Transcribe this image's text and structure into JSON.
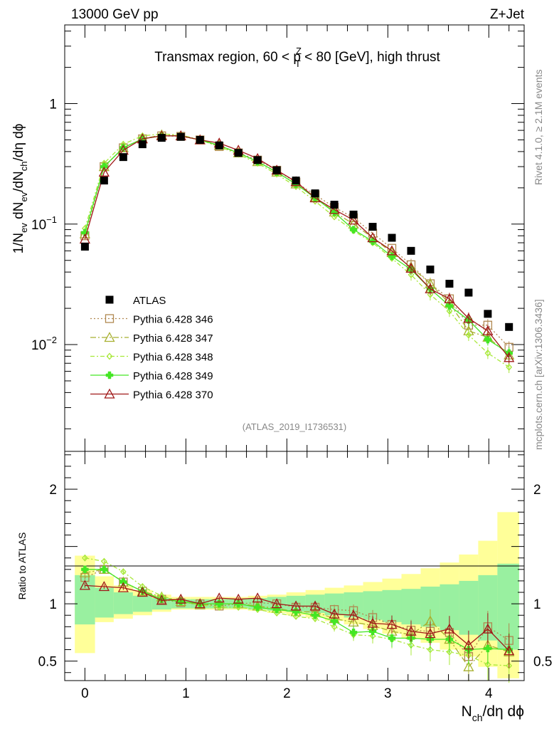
{
  "header": {
    "energy": "13000 GeV pp",
    "process": "Z+Jet",
    "rivet": "Rivet 4.1.0, ≥ 2.1M events",
    "mcplots": "mcplots.cern.ch [arXiv:1306.3436]",
    "analysis": "(ATLAS_2019_I1736531)"
  },
  "chart_data": {
    "type": "line",
    "title_parts": {
      "a": "Transmax region, 60 < p",
      "sup": "Z",
      "sub": "T",
      "b": " < 80 [GeV], high thrust"
    },
    "ylabel_parts": {
      "a": "1/N",
      "s1": "ev",
      "b": " dN",
      "s2": "ev",
      "c": "/dN",
      "s3": "ch",
      "d": "/dη dϕ"
    },
    "xlabel_parts": {
      "a": "N",
      "s1": "ch",
      "b": "/dη dϕ"
    },
    "ratio_ylabel": "Ratio to ATLAS",
    "xlim": [
      -0.2,
      4.35
    ],
    "ylim_main": [
      0.0013,
      4.5
    ],
    "ylim_ratio": [
      0.33,
      2.33
    ],
    "x_ticks": [
      "0",
      "1",
      "2",
      "3",
      "4"
    ],
    "y_ticks_main": [
      {
        "v": 1,
        "base": "1",
        "exp": ""
      },
      {
        "v": 0.1,
        "base": "10",
        "exp": "−1"
      },
      {
        "v": 0.01,
        "base": "10",
        "exp": "−2"
      }
    ],
    "y_ticks_ratio": [
      {
        "v": 0.5,
        "label": "0.5"
      },
      {
        "v": 1,
        "label": "1"
      },
      {
        "v": 2,
        "label": "2"
      }
    ],
    "x": [
      0.0,
      0.19,
      0.38,
      0.57,
      0.76,
      0.95,
      1.14,
      1.33,
      1.52,
      1.71,
      1.9,
      2.09,
      2.28,
      2.47,
      2.66,
      2.85,
      3.04,
      3.23,
      3.42,
      3.61,
      3.8,
      3.99,
      4.2
    ],
    "data": {
      "name": "ATLAS",
      "values": [
        0.065,
        0.23,
        0.36,
        0.46,
        0.52,
        0.53,
        0.5,
        0.45,
        0.39,
        0.34,
        0.28,
        0.23,
        0.18,
        0.145,
        0.12,
        0.095,
        0.077,
        0.06,
        0.042,
        0.032,
        0.027,
        0.018,
        0.014
      ]
    },
    "series": [
      {
        "name": "Pythia 6.428 346",
        "color": "#b08850",
        "marker": "square-open",
        "dash": "2,3",
        "values": [
          0.08,
          0.3,
          0.43,
          0.51,
          0.54,
          0.535,
          0.5,
          0.44,
          0.39,
          0.34,
          0.28,
          0.222,
          0.175,
          0.138,
          0.113,
          0.084,
          0.063,
          0.046,
          0.032,
          0.024,
          0.0145,
          0.0145,
          0.0095
        ],
        "ratio": [
          1.23,
          1.3,
          1.19,
          1.11,
          1.04,
          1.01,
          1.0,
          0.98,
          1.0,
          1.01,
          1.0,
          0.97,
          0.97,
          0.95,
          0.94,
          0.88,
          0.82,
          0.77,
          0.76,
          0.75,
          0.54,
          0.8,
          0.68
        ]
      },
      {
        "name": "Pythia 6.428 347",
        "color": "#a8b030",
        "marker": "triangle-open",
        "dash": "8,3,2,3",
        "values": [
          0.083,
          0.3,
          0.43,
          0.51,
          0.55,
          0.54,
          0.5,
          0.45,
          0.39,
          0.33,
          0.27,
          0.215,
          0.168,
          0.126,
          0.1,
          0.077,
          0.058,
          0.044,
          0.032,
          0.022,
          0.013,
          0.0115,
          0.0082
        ],
        "ratio": [
          1.27,
          1.3,
          1.19,
          1.11,
          1.06,
          1.02,
          0.99,
          1.0,
          1.0,
          0.98,
          0.96,
          0.93,
          0.93,
          0.87,
          0.84,
          0.81,
          0.76,
          0.73,
          0.85,
          0.69,
          0.45,
          0.64,
          0.58
        ]
      },
      {
        "name": "Pythia 6.428 348",
        "color": "#a8e838",
        "marker": "diamond-open",
        "dash": "6,3,2,3",
        "values": [
          0.092,
          0.32,
          0.46,
          0.54,
          0.56,
          0.55,
          0.5,
          0.44,
          0.38,
          0.32,
          0.26,
          0.205,
          0.155,
          0.115,
          0.088,
          0.07,
          0.052,
          0.038,
          0.026,
          0.019,
          0.012,
          0.0085,
          0.0065
        ],
        "ratio": [
          1.4,
          1.37,
          1.28,
          1.15,
          1.07,
          1.02,
          0.99,
          0.97,
          0.97,
          0.95,
          0.92,
          0.89,
          0.87,
          0.8,
          0.73,
          0.72,
          0.69,
          0.64,
          0.6,
          0.58,
          0.55,
          0.47,
          0.46
        ]
      },
      {
        "name": "Pythia 6.428 349",
        "color": "#44e624",
        "marker": "cross",
        "dash": "",
        "values": [
          0.085,
          0.3,
          0.43,
          0.51,
          0.54,
          0.54,
          0.5,
          0.45,
          0.39,
          0.33,
          0.27,
          0.215,
          0.165,
          0.125,
          0.09,
          0.072,
          0.054,
          0.042,
          0.029,
          0.021,
          0.016,
          0.011,
          0.0085
        ],
        "ratio": [
          1.3,
          1.3,
          1.19,
          1.11,
          1.04,
          1.02,
          1.0,
          1.0,
          1.0,
          0.97,
          0.95,
          0.93,
          0.9,
          0.85,
          0.75,
          0.76,
          0.7,
          0.7,
          0.69,
          0.69,
          0.6,
          0.61,
          0.6
        ]
      },
      {
        "name": "Pythia 6.428 370",
        "color": "#a01818",
        "marker": "triangle-open",
        "dash": "",
        "values": [
          0.075,
          0.27,
          0.41,
          0.51,
          0.54,
          0.54,
          0.5,
          0.47,
          0.41,
          0.35,
          0.28,
          0.225,
          0.165,
          0.132,
          0.108,
          0.077,
          0.06,
          0.043,
          0.029,
          0.024,
          0.0165,
          0.013,
          0.0078
        ],
        "ratio": [
          1.16,
          1.15,
          1.14,
          1.1,
          1.03,
          1.04,
          1.0,
          1.05,
          1.04,
          1.05,
          1.0,
          0.98,
          0.98,
          0.91,
          0.9,
          0.83,
          0.82,
          0.76,
          0.74,
          0.78,
          0.64,
          0.78,
          0.59
        ]
      }
    ],
    "bands": {
      "edges": [
        -0.1,
        0.1,
        0.285,
        0.475,
        0.665,
        0.855,
        1.045,
        1.235,
        1.425,
        1.615,
        1.805,
        1.995,
        2.185,
        2.375,
        2.565,
        2.755,
        2.945,
        3.135,
        3.325,
        3.515,
        3.705,
        3.895,
        4.085,
        4.3
      ],
      "stat_hi": [
        1.25,
        1.14,
        1.1,
        1.07,
        1.05,
        1.04,
        1.04,
        1.04,
        1.04,
        1.05,
        1.06,
        1.07,
        1.08,
        1.09,
        1.1,
        1.11,
        1.12,
        1.13,
        1.15,
        1.17,
        1.2,
        1.25,
        1.35
      ],
      "stat_lo": [
        0.82,
        0.88,
        0.91,
        0.93,
        0.95,
        0.96,
        0.96,
        0.96,
        0.96,
        0.95,
        0.94,
        0.93,
        0.92,
        0.9,
        0.88,
        0.86,
        0.84,
        0.82,
        0.8,
        0.77,
        0.73,
        0.68,
        0.6
      ],
      "tot_hi": [
        1.42,
        1.24,
        1.16,
        1.12,
        1.08,
        1.06,
        1.06,
        1.06,
        1.06,
        1.07,
        1.08,
        1.1,
        1.12,
        1.14,
        1.16,
        1.19,
        1.22,
        1.26,
        1.31,
        1.36,
        1.43,
        1.55,
        1.8
      ],
      "tot_lo": [
        0.57,
        0.84,
        0.87,
        0.9,
        0.93,
        0.95,
        0.95,
        0.95,
        0.95,
        0.94,
        0.92,
        0.9,
        0.88,
        0.85,
        0.82,
        0.78,
        0.74,
        0.7,
        0.66,
        0.6,
        0.54,
        0.45,
        0.35
      ]
    }
  }
}
